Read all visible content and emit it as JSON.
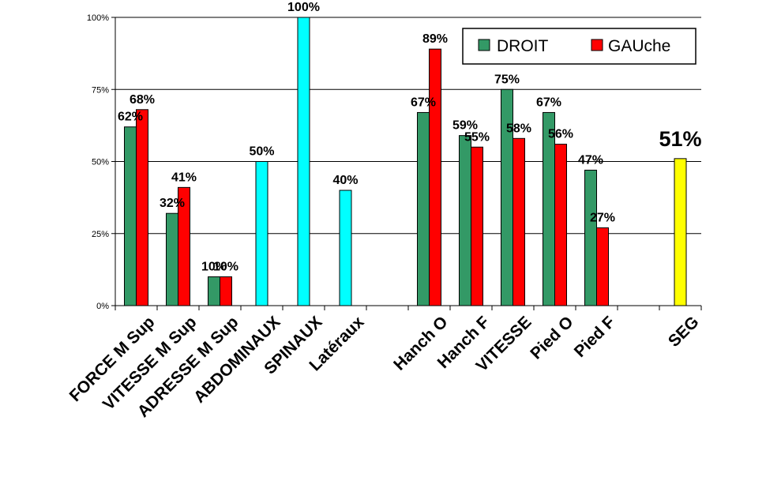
{
  "chart_data": {
    "type": "bar",
    "ylim": [
      0,
      100
    ],
    "ytick_labels": [
      "0%",
      "25%",
      "50%",
      "75%",
      "100%"
    ],
    "grid": true,
    "legend_position": "top-right",
    "categories": [
      "FORCE M Sup",
      "VITESSE   M Sup",
      "ADRESSE  M Sup",
      "ABDOMINAUX",
      "SPINAUX",
      "Latéraux",
      "",
      "Hanch O",
      "Hanch F",
      "VITESSE",
      "Pied O",
      "Pied F",
      "",
      "SEG"
    ],
    "series": [
      {
        "name": "DROIT",
        "color": "#339966",
        "values": [
          62,
          32,
          10,
          null,
          null,
          null,
          null,
          67,
          59,
          75,
          67,
          47,
          null,
          null
        ]
      },
      {
        "name": "GAUche",
        "color": "#ff0000",
        "values": [
          68,
          41,
          10,
          null,
          null,
          null,
          null,
          89,
          55,
          58,
          56,
          27,
          null,
          null
        ]
      }
    ],
    "single_values": [
      {
        "category_index": 3,
        "value": 50,
        "label": "50%",
        "color": "#00ffff"
      },
      {
        "category_index": 4,
        "value": 100,
        "label": "100%",
        "color": "#00ffff"
      },
      {
        "category_index": 5,
        "value": 40,
        "label": "40%",
        "color": "#00ffff"
      },
      {
        "category_index": 13,
        "value": 51,
        "label": "51%",
        "color": "#ffff00"
      }
    ],
    "data_labels": {
      "DROIT": [
        "62%",
        "32%",
        "10%",
        "",
        "",
        "",
        "",
        "67%",
        "59%",
        "75%",
        "67%",
        "47%",
        "",
        ""
      ],
      "GAUche": [
        "68%",
        "41%",
        "10%",
        "",
        "",
        "",
        "",
        "89%",
        "55%",
        "58%",
        "56%",
        "27%",
        "",
        ""
      ]
    }
  }
}
